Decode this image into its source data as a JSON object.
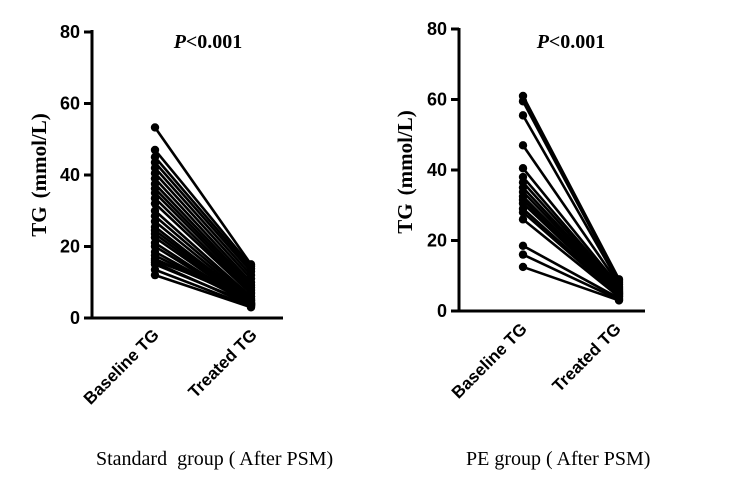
{
  "chart_data": [
    {
      "type": "line",
      "subtype": "paired-dot",
      "annotation_italic": "P",
      "annotation_rest": "<0.001",
      "ylabel": "TG (mmol/L)",
      "ylabel_main": "TG",
      "ylabel_unit": "(mmol/L)",
      "categories": [
        "Baseline TG",
        "Treated TG"
      ],
      "ylim": [
        0,
        80
      ],
      "yticks": [
        0,
        20,
        40,
        60,
        80
      ],
      "caption": "Standard  group ( After PSM)",
      "pairs": [
        [
          53.3,
          15.0
        ],
        [
          47.0,
          14.5
        ],
        [
          45.0,
          13.8
        ],
        [
          43.5,
          13.0
        ],
        [
          42.0,
          12.0
        ],
        [
          40.5,
          11.0
        ],
        [
          39.0,
          10.0
        ],
        [
          37.5,
          9.2
        ],
        [
          36.2,
          8.5
        ],
        [
          35.0,
          7.8
        ],
        [
          33.5,
          7.2
        ],
        [
          32.0,
          6.8
        ],
        [
          30.0,
          6.0
        ],
        [
          28.5,
          5.5
        ],
        [
          27.0,
          5.0
        ],
        [
          25.5,
          4.6
        ],
        [
          24.5,
          4.3
        ],
        [
          23.5,
          4.0
        ],
        [
          22.5,
          3.8
        ],
        [
          21.0,
          3.6
        ],
        [
          20.0,
          3.4
        ],
        [
          18.5,
          3.8
        ],
        [
          17.5,
          4.2
        ],
        [
          16.5,
          5.0
        ],
        [
          16.0,
          6.0
        ],
        [
          15.5,
          3.5
        ],
        [
          15.0,
          4.0
        ],
        [
          13.5,
          3.2
        ],
        [
          12.0,
          3.0
        ]
      ]
    },
    {
      "type": "line",
      "subtype": "paired-dot",
      "annotation_italic": "P",
      "annotation_rest": "<0.001",
      "ylabel": "TG (mmol/L)",
      "ylabel_main": "TG",
      "ylabel_unit": "(mmol/L)",
      "categories": [
        "Baseline TG",
        "Treated TG"
      ],
      "ylim": [
        0,
        80
      ],
      "yticks": [
        0,
        20,
        40,
        60,
        80
      ],
      "caption": "PE group ( After PSM)",
      "pairs": [
        [
          61.0,
          9.0
        ],
        [
          59.5,
          8.5
        ],
        [
          55.5,
          8.0
        ],
        [
          47.0,
          7.5
        ],
        [
          40.5,
          7.0
        ],
        [
          38.0,
          6.6
        ],
        [
          36.5,
          6.2
        ],
        [
          35.0,
          5.8
        ],
        [
          33.8,
          5.5
        ],
        [
          32.5,
          5.2
        ],
        [
          31.5,
          5.0
        ],
        [
          30.5,
          4.8
        ],
        [
          29.0,
          4.5
        ],
        [
          28.0,
          4.2
        ],
        [
          26.0,
          4.0
        ],
        [
          18.5,
          3.6
        ],
        [
          16.0,
          3.2
        ],
        [
          12.5,
          3.0
        ]
      ]
    }
  ]
}
